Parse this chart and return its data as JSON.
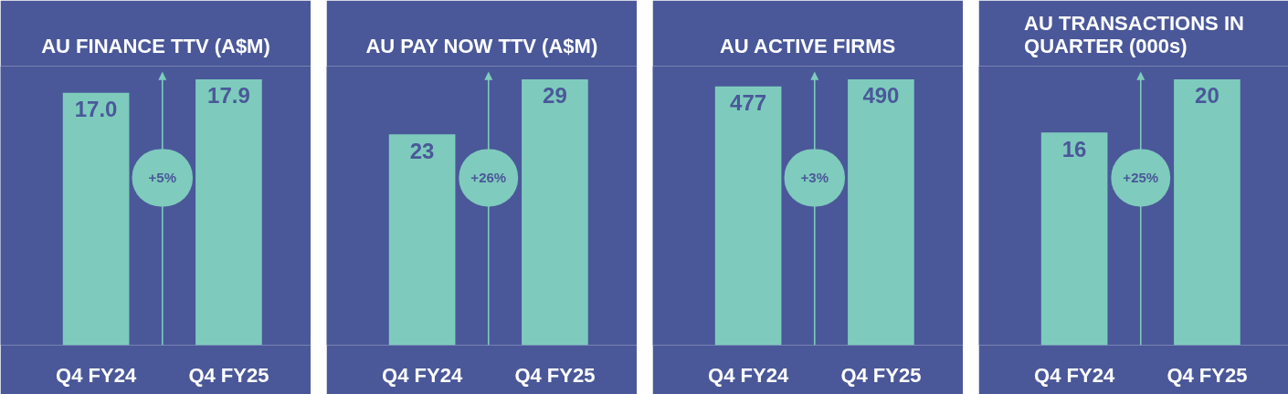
{
  "chart_data": [
    {
      "type": "bar",
      "title": "AU FINANCE TTV (A$M)",
      "categories": [
        "Q4 FY24",
        "Q4 FY25"
      ],
      "values": [
        17.0,
        17.9
      ],
      "value_labels": [
        "17.0",
        "17.9"
      ],
      "color": "#7ecbbd",
      "annotations": [
        "+5%"
      ],
      "tick_labels": "x",
      "grid": false
    },
    {
      "type": "bar",
      "title": "AU PAY NOW TTV (A$M)",
      "categories": [
        "Q4 FY24",
        "Q4 FY25"
      ],
      "values": [
        23,
        29
      ],
      "value_labels": [
        "23",
        "29"
      ],
      "color": "#7ecbbd",
      "annotations": [
        "+26%"
      ],
      "tick_labels": "x",
      "grid": false
    },
    {
      "type": "bar",
      "title": "AU ACTIVE FIRMS",
      "categories": [
        "Q4 FY24",
        "Q4 FY25"
      ],
      "values": [
        477,
        490
      ],
      "value_labels": [
        "477",
        "490"
      ],
      "color": "#7ecbbd",
      "annotations": [
        "+3%"
      ],
      "tick_labels": "x",
      "grid": false
    },
    {
      "type": "bar",
      "title": "AU TRANSACTIONS IN QUARTER (000s)",
      "categories": [
        "Q4 FY24",
        "Q4 FY25"
      ],
      "values": [
        16,
        20
      ],
      "value_labels": [
        "16",
        "20"
      ],
      "color": "#7ecbbd",
      "annotations": [
        "+25%"
      ],
      "tick_labels": "x",
      "grid": false
    }
  ]
}
